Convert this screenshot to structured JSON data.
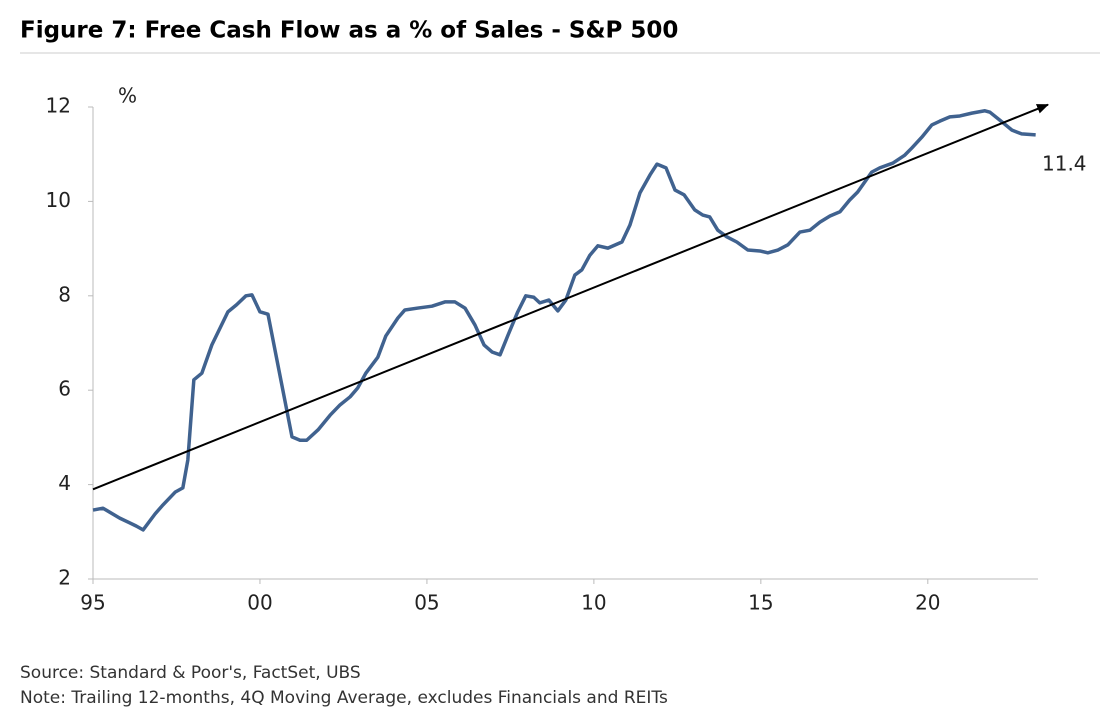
{
  "chart_data": {
    "type": "line",
    "title": "Figure 7: Free Cash Flow as a % of Sales - S&P 500",
    "y_label": "%",
    "annotation": "11.4",
    "source": "Source: Standard & Poor's, FactSet, UBS",
    "note": "Note: Trailing 12-months, 4Q Moving Average, excludes Financials and REITs",
    "x": [
      1995.0,
      1995.3,
      1995.8,
      1996.3,
      1996.5,
      1996.86,
      1997.07,
      1997.46,
      1997.69,
      1997.84,
      1998.02,
      1998.26,
      1998.56,
      1999.04,
      1999.3,
      1999.58,
      1999.76,
      2000.0,
      2000.24,
      2000.96,
      2001.2,
      2001.4,
      2001.74,
      2002.1,
      2002.4,
      2002.7,
      2002.93,
      2003.17,
      2003.53,
      2003.77,
      2004.13,
      2004.34,
      2004.73,
      2005.15,
      2005.54,
      2005.84,
      2006.14,
      2006.44,
      2006.71,
      2006.95,
      2007.19,
      2007.43,
      2007.72,
      2007.96,
      2008.2,
      2008.38,
      2008.65,
      2008.92,
      2009.16,
      2009.43,
      2009.64,
      2009.88,
      2010.12,
      2010.42,
      2010.84,
      2011.08,
      2011.38,
      2011.68,
      2011.89,
      2012.16,
      2012.43,
      2012.7,
      2013.02,
      2013.26,
      2013.47,
      2013.71,
      2013.98,
      2014.28,
      2014.61,
      2014.97,
      2015.21,
      2015.51,
      2015.81,
      2016.17,
      2016.47,
      2016.77,
      2017.07,
      2017.37,
      2017.66,
      2017.9,
      2018.32,
      2018.56,
      2018.95,
      2019.31,
      2019.52,
      2019.82,
      2020.12,
      2020.36,
      2020.66,
      2020.96,
      2021.32,
      2021.71,
      2021.86,
      2022.16,
      2022.52,
      2022.81,
      2023.23
    ],
    "series": [
      {
        "color": "#40628f",
        "values": [
          3.46,
          3.5,
          3.29,
          3.12,
          3.04,
          3.38,
          3.55,
          3.84,
          3.93,
          4.52,
          6.22,
          6.36,
          6.96,
          7.66,
          7.81,
          8.0,
          8.02,
          7.66,
          7.61,
          5.01,
          4.94,
          4.94,
          5.16,
          5.47,
          5.69,
          5.86,
          6.05,
          6.36,
          6.7,
          7.15,
          7.53,
          7.7,
          7.74,
          7.78,
          7.87,
          7.87,
          7.74,
          7.38,
          6.96,
          6.81,
          6.75,
          7.17,
          7.66,
          8.0,
          7.97,
          7.85,
          7.91,
          7.68,
          7.91,
          8.44,
          8.55,
          8.86,
          9.06,
          9.01,
          9.14,
          9.5,
          10.18,
          10.56,
          10.79,
          10.71,
          10.24,
          10.14,
          9.82,
          9.71,
          9.67,
          9.39,
          9.25,
          9.14,
          8.97,
          8.95,
          8.91,
          8.97,
          9.08,
          9.35,
          9.39,
          9.56,
          9.69,
          9.78,
          10.03,
          10.2,
          10.62,
          10.71,
          10.81,
          10.98,
          11.13,
          11.36,
          11.62,
          11.7,
          11.79,
          11.81,
          11.87,
          11.92,
          11.89,
          11.72,
          11.51,
          11.43,
          11.41
        ]
      }
    ],
    "trend": {
      "color": "#000000",
      "x": [
        1995.0,
        2023.6
      ],
      "values": [
        3.9,
        12.05
      ]
    },
    "xlim": [
      1995,
      2023.3
    ],
    "xticks": [
      {
        "value": 1995,
        "label": "95"
      },
      {
        "value": 2000,
        "label": "00"
      },
      {
        "value": 2005,
        "label": "05"
      },
      {
        "value": 2010,
        "label": "10"
      },
      {
        "value": 2015,
        "label": "15"
      },
      {
        "value": 2020,
        "label": "20"
      }
    ],
    "ylim": [
      2,
      12
    ],
    "yticks": [
      2,
      4,
      6,
      8,
      10,
      12
    ]
  }
}
